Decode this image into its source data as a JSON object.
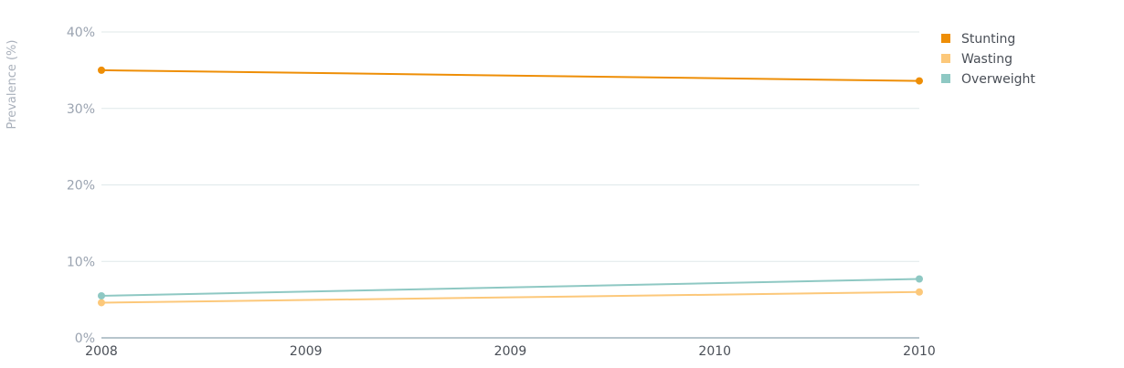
{
  "chart_data": {
    "type": "line",
    "ylabel": "Prevalence (%)",
    "xlabel": "",
    "x_ticks": [
      "2008",
      "2009",
      "2009",
      "2010",
      "2010"
    ],
    "x": [
      2008,
      2010
    ],
    "ylim": [
      0,
      40
    ],
    "y_ticks": [
      "0%",
      "10%",
      "20%",
      "30%",
      "40%"
    ],
    "grid": true,
    "legend_position": "top-right",
    "series": [
      {
        "name": "Stunting",
        "color": "#ee8e06",
        "values": [
          35.0,
          33.6
        ]
      },
      {
        "name": "Wasting",
        "color": "#fcc87a",
        "values": [
          4.6,
          6.0
        ]
      },
      {
        "name": "Overweight",
        "color": "#8ec8c3",
        "values": [
          5.5,
          7.7
        ]
      }
    ]
  }
}
